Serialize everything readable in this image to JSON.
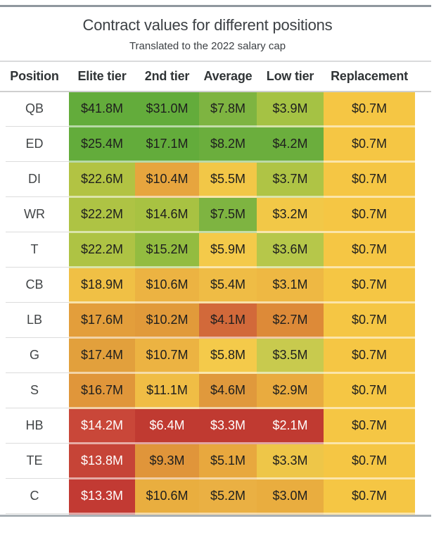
{
  "title": "Contract values for different positions",
  "subtitle": "Translated to the 2022 salary cap",
  "table": {
    "columns": [
      "Position",
      "Elite tier",
      "2nd tier",
      "Average",
      "Low tier",
      "Replacement"
    ],
    "rows": [
      {
        "position": "QB",
        "cells": [
          {
            "v": "$41.8M",
            "bg": "#63ac3b",
            "light": false
          },
          {
            "v": "$31.0M",
            "bg": "#63ac3b",
            "light": false
          },
          {
            "v": "$7.8M",
            "bg": "#7eb441",
            "light": false
          },
          {
            "v": "$3.9M",
            "bg": "#a5c244",
            "light": false
          },
          {
            "v": "$0.7M",
            "bg": "#f5c644",
            "light": false
          }
        ]
      },
      {
        "position": "ED",
        "cells": [
          {
            "v": "$25.4M",
            "bg": "#63ac3b",
            "light": false
          },
          {
            "v": "$17.1M",
            "bg": "#63ac3b",
            "light": false
          },
          {
            "v": "$8.2M",
            "bg": "#6bae3d",
            "light": false
          },
          {
            "v": "$4.2M",
            "bg": "#6bae3d",
            "light": false
          },
          {
            "v": "$0.7M",
            "bg": "#f5c644",
            "light": false
          }
        ]
      },
      {
        "position": "DI",
        "cells": [
          {
            "v": "$22.6M",
            "bg": "#b2c343",
            "light": false
          },
          {
            "v": "$10.4M",
            "bg": "#e7a53e",
            "light": false
          },
          {
            "v": "$5.5M",
            "bg": "#f2c747",
            "light": false
          },
          {
            "v": "$3.7M",
            "bg": "#afc445",
            "light": false
          },
          {
            "v": "$0.7M",
            "bg": "#f5c644",
            "light": false
          }
        ]
      },
      {
        "position": "WR",
        "cells": [
          {
            "v": "$22.2M",
            "bg": "#aec344",
            "light": false
          },
          {
            "v": "$14.6M",
            "bg": "#a8c242",
            "light": false
          },
          {
            "v": "$7.5M",
            "bg": "#7eb441",
            "light": false
          },
          {
            "v": "$3.2M",
            "bg": "#f2c847",
            "light": false
          },
          {
            "v": "$0.7M",
            "bg": "#f5c644",
            "light": false
          }
        ]
      },
      {
        "position": "T",
        "cells": [
          {
            "v": "$22.2M",
            "bg": "#aec344",
            "light": false
          },
          {
            "v": "$15.2M",
            "bg": "#93bc40",
            "light": false
          },
          {
            "v": "$5.9M",
            "bg": "#f4ca4a",
            "light": false
          },
          {
            "v": "$3.6M",
            "bg": "#b6c74a",
            "light": false
          },
          {
            "v": "$0.7M",
            "bg": "#f5c644",
            "light": false
          }
        ]
      },
      {
        "position": "CB",
        "cells": [
          {
            "v": "$18.9M",
            "bg": "#f0c045",
            "light": false
          },
          {
            "v": "$10.6M",
            "bg": "#ecb342",
            "light": false
          },
          {
            "v": "$5.4M",
            "bg": "#efbc45",
            "light": false
          },
          {
            "v": "$3.1M",
            "bg": "#eeb843",
            "light": false
          },
          {
            "v": "$0.7M",
            "bg": "#f5c644",
            "light": false
          }
        ]
      },
      {
        "position": "LB",
        "cells": [
          {
            "v": "$17.6M",
            "bg": "#e39e3b",
            "light": false
          },
          {
            "v": "$10.2M",
            "bg": "#e19a3a",
            "light": false
          },
          {
            "v": "$4.1M",
            "bg": "#d2693a",
            "light": false
          },
          {
            "v": "$2.7M",
            "bg": "#dd8a38",
            "light": false
          },
          {
            "v": "$0.7M",
            "bg": "#f5c644",
            "light": false
          }
        ]
      },
      {
        "position": "G",
        "cells": [
          {
            "v": "$17.4M",
            "bg": "#e2a03c",
            "light": false
          },
          {
            "v": "$10.7M",
            "bg": "#ecb342",
            "light": false
          },
          {
            "v": "$5.8M",
            "bg": "#f4ca4a",
            "light": false
          },
          {
            "v": "$3.5M",
            "bg": "#c8ca4e",
            "light": false
          },
          {
            "v": "$0.7M",
            "bg": "#f5c644",
            "light": false
          }
        ]
      },
      {
        "position": "S",
        "cells": [
          {
            "v": "$16.7M",
            "bg": "#e0963a",
            "light": false
          },
          {
            "v": "$11.1M",
            "bg": "#f0bd45",
            "light": false
          },
          {
            "v": "$4.6M",
            "bg": "#e0993c",
            "light": false
          },
          {
            "v": "$2.9M",
            "bg": "#e9ab3f",
            "light": false
          },
          {
            "v": "$0.7M",
            "bg": "#f5c644",
            "light": false
          }
        ]
      },
      {
        "position": "HB",
        "cells": [
          {
            "v": "$14.2M",
            "bg": "#c94739",
            "light": true
          },
          {
            "v": "$6.4M",
            "bg": "#c03a31",
            "light": true
          },
          {
            "v": "$3.3M",
            "bg": "#c03a31",
            "light": true
          },
          {
            "v": "$2.1M",
            "bg": "#c03a31",
            "light": true
          },
          {
            "v": "$0.7M",
            "bg": "#f5c644",
            "light": false
          }
        ]
      },
      {
        "position": "TE",
        "cells": [
          {
            "v": "$13.8M",
            "bg": "#c64437",
            "light": true
          },
          {
            "v": "$9.3M",
            "bg": "#e0953a",
            "light": false
          },
          {
            "v": "$5.1M",
            "bg": "#e8a83e",
            "light": false
          },
          {
            "v": "$3.3M",
            "bg": "#eec648",
            "light": false
          },
          {
            "v": "$0.7M",
            "bg": "#f5c644",
            "light": false
          }
        ]
      },
      {
        "position": "C",
        "cells": [
          {
            "v": "$13.3M",
            "bg": "#c23a33",
            "light": true
          },
          {
            "v": "$10.6M",
            "bg": "#e9ae3f",
            "light": false
          },
          {
            "v": "$5.2M",
            "bg": "#eab043",
            "light": false
          },
          {
            "v": "$3.0M",
            "bg": "#e9ad3f",
            "light": false
          },
          {
            "v": "$0.7M",
            "bg": "#f5c644",
            "light": false
          }
        ]
      }
    ]
  },
  "colors": {
    "rule_top": "#8f979e",
    "rule_mid": "#d9dadb",
    "header_underline": "#cfcfcf",
    "rule_bottom": "#aab1b6",
    "text_dark": "#1e1e1e",
    "text_light": "#ffffff"
  },
  "chart_data": {
    "type": "heatmap",
    "title": "Contract values for different positions",
    "subtitle": "Translated to the 2022 salary cap",
    "unit": "$M",
    "categories": [
      "QB",
      "ED",
      "DI",
      "WR",
      "T",
      "CB",
      "LB",
      "G",
      "S",
      "HB",
      "TE",
      "C"
    ],
    "series": [
      {
        "name": "Elite tier",
        "values": [
          41.8,
          25.4,
          22.6,
          22.2,
          22.2,
          18.9,
          17.6,
          17.4,
          16.7,
          14.2,
          13.8,
          13.3
        ]
      },
      {
        "name": "2nd tier",
        "values": [
          31.0,
          17.1,
          10.4,
          14.6,
          15.2,
          10.6,
          10.2,
          10.7,
          11.1,
          6.4,
          9.3,
          10.6
        ]
      },
      {
        "name": "Average",
        "values": [
          7.8,
          8.2,
          5.5,
          7.5,
          5.9,
          5.4,
          4.1,
          5.8,
          4.6,
          3.3,
          5.1,
          5.2
        ]
      },
      {
        "name": "Low tier",
        "values": [
          3.9,
          4.2,
          3.7,
          3.2,
          3.6,
          3.1,
          2.7,
          3.5,
          2.9,
          2.1,
          3.3,
          3.0
        ]
      },
      {
        "name": "Replacement",
        "values": [
          0.7,
          0.7,
          0.7,
          0.7,
          0.7,
          0.7,
          0.7,
          0.7,
          0.7,
          0.7,
          0.7,
          0.7
        ]
      }
    ],
    "color_scale": "red-yellow-green (high values green, low values red; per-cell shading)",
    "legend_position": "none",
    "grid": false
  }
}
